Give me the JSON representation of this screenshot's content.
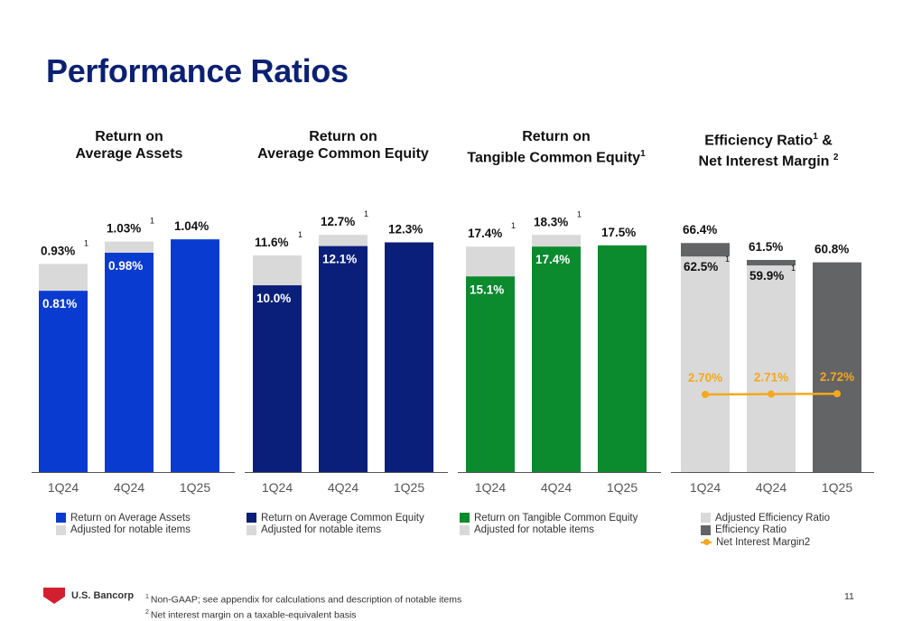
{
  "title": "Performance Ratios",
  "colors": {
    "title": "#0c2074",
    "adjusted": "#d9d9d9",
    "royal_blue": "#0a3bd0",
    "navy": "#0a1f7a",
    "green": "#0b8a2e",
    "dark_gray": "#636466",
    "orange": "#f4a81b"
  },
  "chart_data": [
    {
      "type": "bar",
      "title_line1": "Return on",
      "title_line2": "Average Assets",
      "title_sup": "",
      "title_sup2": "",
      "categories": [
        "1Q24",
        "4Q24",
        "1Q25"
      ],
      "series": [
        {
          "name": "Return on Average Assets",
          "values": [
            0.81,
            0.98,
            1.04
          ],
          "labels": [
            "0.81%",
            "0.98%",
            "1.04%"
          ],
          "color": "#0a3bd0"
        },
        {
          "name": "Adjusted for notable items",
          "values": [
            0.93,
            1.03,
            null
          ],
          "labels": [
            "0.93%",
            "1.03%",
            ""
          ],
          "color": "#d9d9d9"
        }
      ],
      "adjusted_footnote": [
        "1",
        "1",
        ""
      ],
      "ylim": [
        0,
        1.21
      ]
    },
    {
      "type": "bar",
      "title_line1": "Return on",
      "title_line2": "Average Common Equity",
      "title_sup": "",
      "title_sup2": "",
      "categories": [
        "1Q24",
        "4Q24",
        "1Q25"
      ],
      "series": [
        {
          "name": "Return on Average Common Equity",
          "values": [
            10.0,
            12.1,
            12.3
          ],
          "labels": [
            "10.0%",
            "12.1%",
            "12.3%"
          ],
          "color": "#0a1f7a"
        },
        {
          "name": "Adjusted for notable items",
          "values": [
            11.6,
            12.7,
            null
          ],
          "labels": [
            "11.6%",
            "12.7%",
            ""
          ],
          "color": "#d9d9d9"
        }
      ],
      "adjusted_footnote": [
        "1",
        "1",
        ""
      ],
      "ylim": [
        0,
        14.5
      ]
    },
    {
      "type": "bar",
      "title_line1": "Return on",
      "title_line2": "Tangible Common Equity",
      "title_sup": "1",
      "title_sup2": "",
      "categories": [
        "1Q24",
        "4Q24",
        "1Q25"
      ],
      "series": [
        {
          "name": "Return on Tangible Common Equity",
          "values": [
            15.1,
            17.4,
            17.5
          ],
          "labels": [
            "15.1%",
            "17.4%",
            "17.5%"
          ],
          "color": "#0b8a2e"
        },
        {
          "name": "Adjusted for notable items",
          "values": [
            17.4,
            18.3,
            null
          ],
          "labels": [
            "17.4%",
            "18.3%",
            ""
          ],
          "color": "#d9d9d9"
        }
      ],
      "adjusted_footnote": [
        "1",
        "1",
        ""
      ],
      "ylim": [
        0,
        20.9
      ]
    },
    {
      "type": "bar",
      "title_line1": "Efficiency Ratio",
      "title_line1_tail": "&",
      "title_line2": "Net Interest Margin",
      "title_sup": "1",
      "title_sup2": "2",
      "categories": [
        "1Q24",
        "4Q24",
        "1Q25"
      ],
      "series": [
        {
          "name": "Adjusted Efficiency Ratio",
          "values": [
            62.5,
            59.9,
            null
          ],
          "labels": [
            "62.5%",
            "59.9%",
            ""
          ],
          "color": "#d9d9d9"
        },
        {
          "name": "Efficiency Ratio",
          "values": [
            66.4,
            61.5,
            60.8
          ],
          "labels": [
            "66.4%",
            "61.5%",
            "60.8%"
          ],
          "color": "#636466"
        }
      ],
      "line_series": {
        "name": "Net Interest Margin",
        "name_sup": "2",
        "values": [
          2.7,
          2.71,
          2.72
        ],
        "labels": [
          "2.70%",
          "2.71%",
          "2.72%"
        ],
        "color": "#f4a81b"
      },
      "adjusted_footnote": [
        "1",
        "1",
        ""
      ],
      "ylim": [
        0,
        78.5
      ]
    }
  ],
  "footer": {
    "logo_text": "U.S. Bancorp",
    "footnote1_mark": "1",
    "footnote1": "Non-GAAP; see appendix for calculations and description of notable items",
    "footnote2_mark": "2",
    "footnote2": "Net interest margin on a taxable-equivalent basis",
    "page_number": "11"
  }
}
